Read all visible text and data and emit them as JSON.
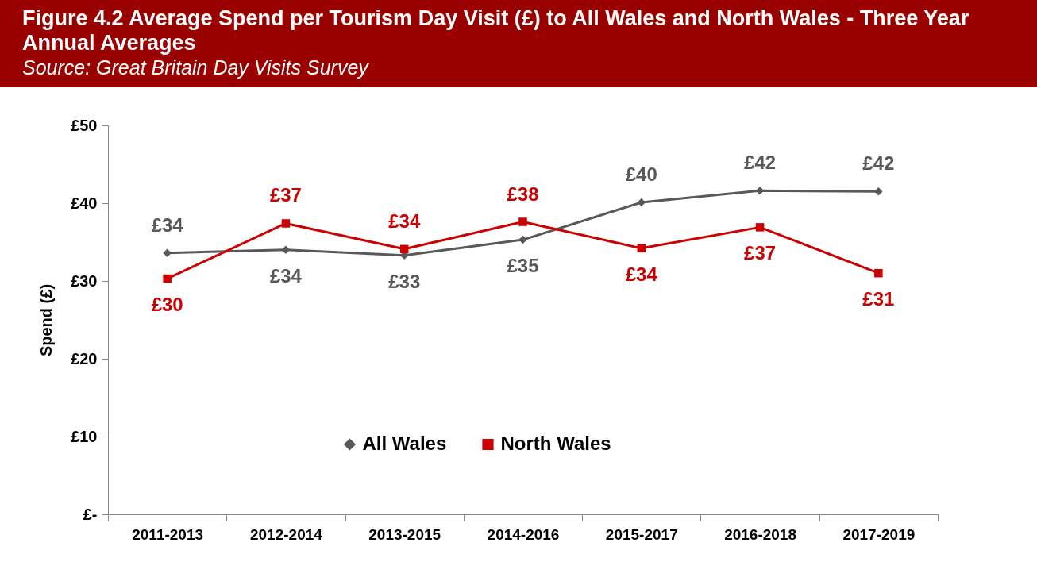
{
  "chart_data": {
    "type": "line",
    "title": "Figure 4.2 Average Spend per Tourism Day Visit (£) to All Wales and North Wales - Three Year Annual Averages",
    "subtitle": "Source: Great Britain Day Visits Survey",
    "ylabel": "Spend (£)",
    "categories": [
      "2011-2013",
      "2012-2014",
      "2013-2015",
      "2014-2016",
      "2015-2017",
      "2016-2018",
      "2017-2019"
    ],
    "ylim": [
      0,
      50
    ],
    "yticks": [
      {
        "value": 0,
        "label": "£-"
      },
      {
        "value": 10,
        "label": "£10"
      },
      {
        "value": 20,
        "label": "£20"
      },
      {
        "value": 30,
        "label": "£30"
      },
      {
        "value": 40,
        "label": "£40"
      },
      {
        "value": 50,
        "label": "£50"
      }
    ],
    "legend": "bottom",
    "series": [
      {
        "name": "All Wales",
        "color": "#595959",
        "marker": "diamond",
        "values": [
          33.6,
          34.0,
          33.3,
          35.3,
          40.1,
          41.6,
          41.5
        ],
        "value_labels": [
          "£34",
          "£34",
          "£33",
          "£35",
          "£40",
          "£42",
          "£42"
        ]
      },
      {
        "name": "North Wales",
        "color": "#cc0000",
        "marker": "square",
        "values": [
          30.3,
          37.4,
          34.1,
          37.6,
          34.2,
          36.9,
          31.0
        ],
        "value_labels": [
          "£30",
          "£37",
          "£34",
          "£38",
          "£34",
          "£37",
          "£31"
        ]
      }
    ]
  }
}
